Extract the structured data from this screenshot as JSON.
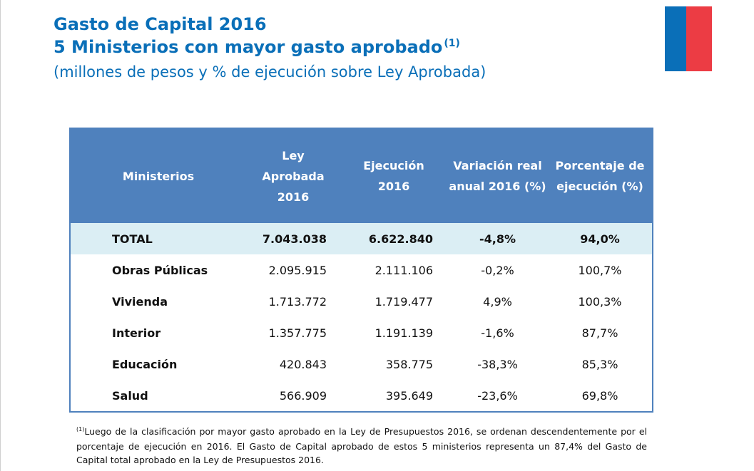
{
  "header": {
    "title_line1": "Gasto de Capital 2016",
    "title_line2": "5 Ministerios con mayor gasto aprobado",
    "title_marker": "(1)",
    "subtitle": "(millones de pesos y % de ejecución sobre Ley Aprobada)"
  },
  "flag_colors": {
    "blue": "#0a6fb8",
    "red": "#ec3c44"
  },
  "table": {
    "headers": {
      "ministerios": "Ministerios",
      "ley_l1": "Ley",
      "ley_l2": "Aprobada",
      "ley_l3": "2016",
      "ej_l1": "Ejecución",
      "ej_l2": "2016",
      "var_l1": "Variación real",
      "var_l2": "anual 2016 (%)",
      "pct_l1": "Porcentaje de",
      "pct_l2": "ejecución (%)"
    },
    "rows": [
      {
        "name": "TOTAL",
        "ley": "7.043.038",
        "ejecucion": "6.622.840",
        "variacion": "-4,8%",
        "porcentaje": "94,0%"
      },
      {
        "name": "Obras Públicas",
        "ley": "2.095.915",
        "ejecucion": "2.111.106",
        "variacion": "-0,2%",
        "porcentaje": "100,7%"
      },
      {
        "name": "Vivienda",
        "ley": "1.713.772",
        "ejecucion": "1.719.477",
        "variacion": "4,9%",
        "porcentaje": "100,3%"
      },
      {
        "name": "Interior",
        "ley": "1.357.775",
        "ejecucion": "1.191.139",
        "variacion": "-1,6%",
        "porcentaje": "87,7%"
      },
      {
        "name": "Educación",
        "ley": "420.843",
        "ejecucion": "358.775",
        "variacion": "-38,3%",
        "porcentaje": "85,3%"
      },
      {
        "name": "Salud",
        "ley": "566.909",
        "ejecucion": "395.649",
        "variacion": "-23,6%",
        "porcentaje": "69,8%"
      }
    ]
  },
  "footnote": {
    "marker": "(1)",
    "text": "Luego de la clasificación por mayor gasto aprobado en la Ley de Presupuestos 2016, se ordenan descendentemente por el porcentaje de ejecución en 2016. El Gasto de Capital aprobado de estos 5 ministerios representa un 87,4% del Gasto de Capital total aprobado en la Ley de Presupuestos 2016."
  }
}
